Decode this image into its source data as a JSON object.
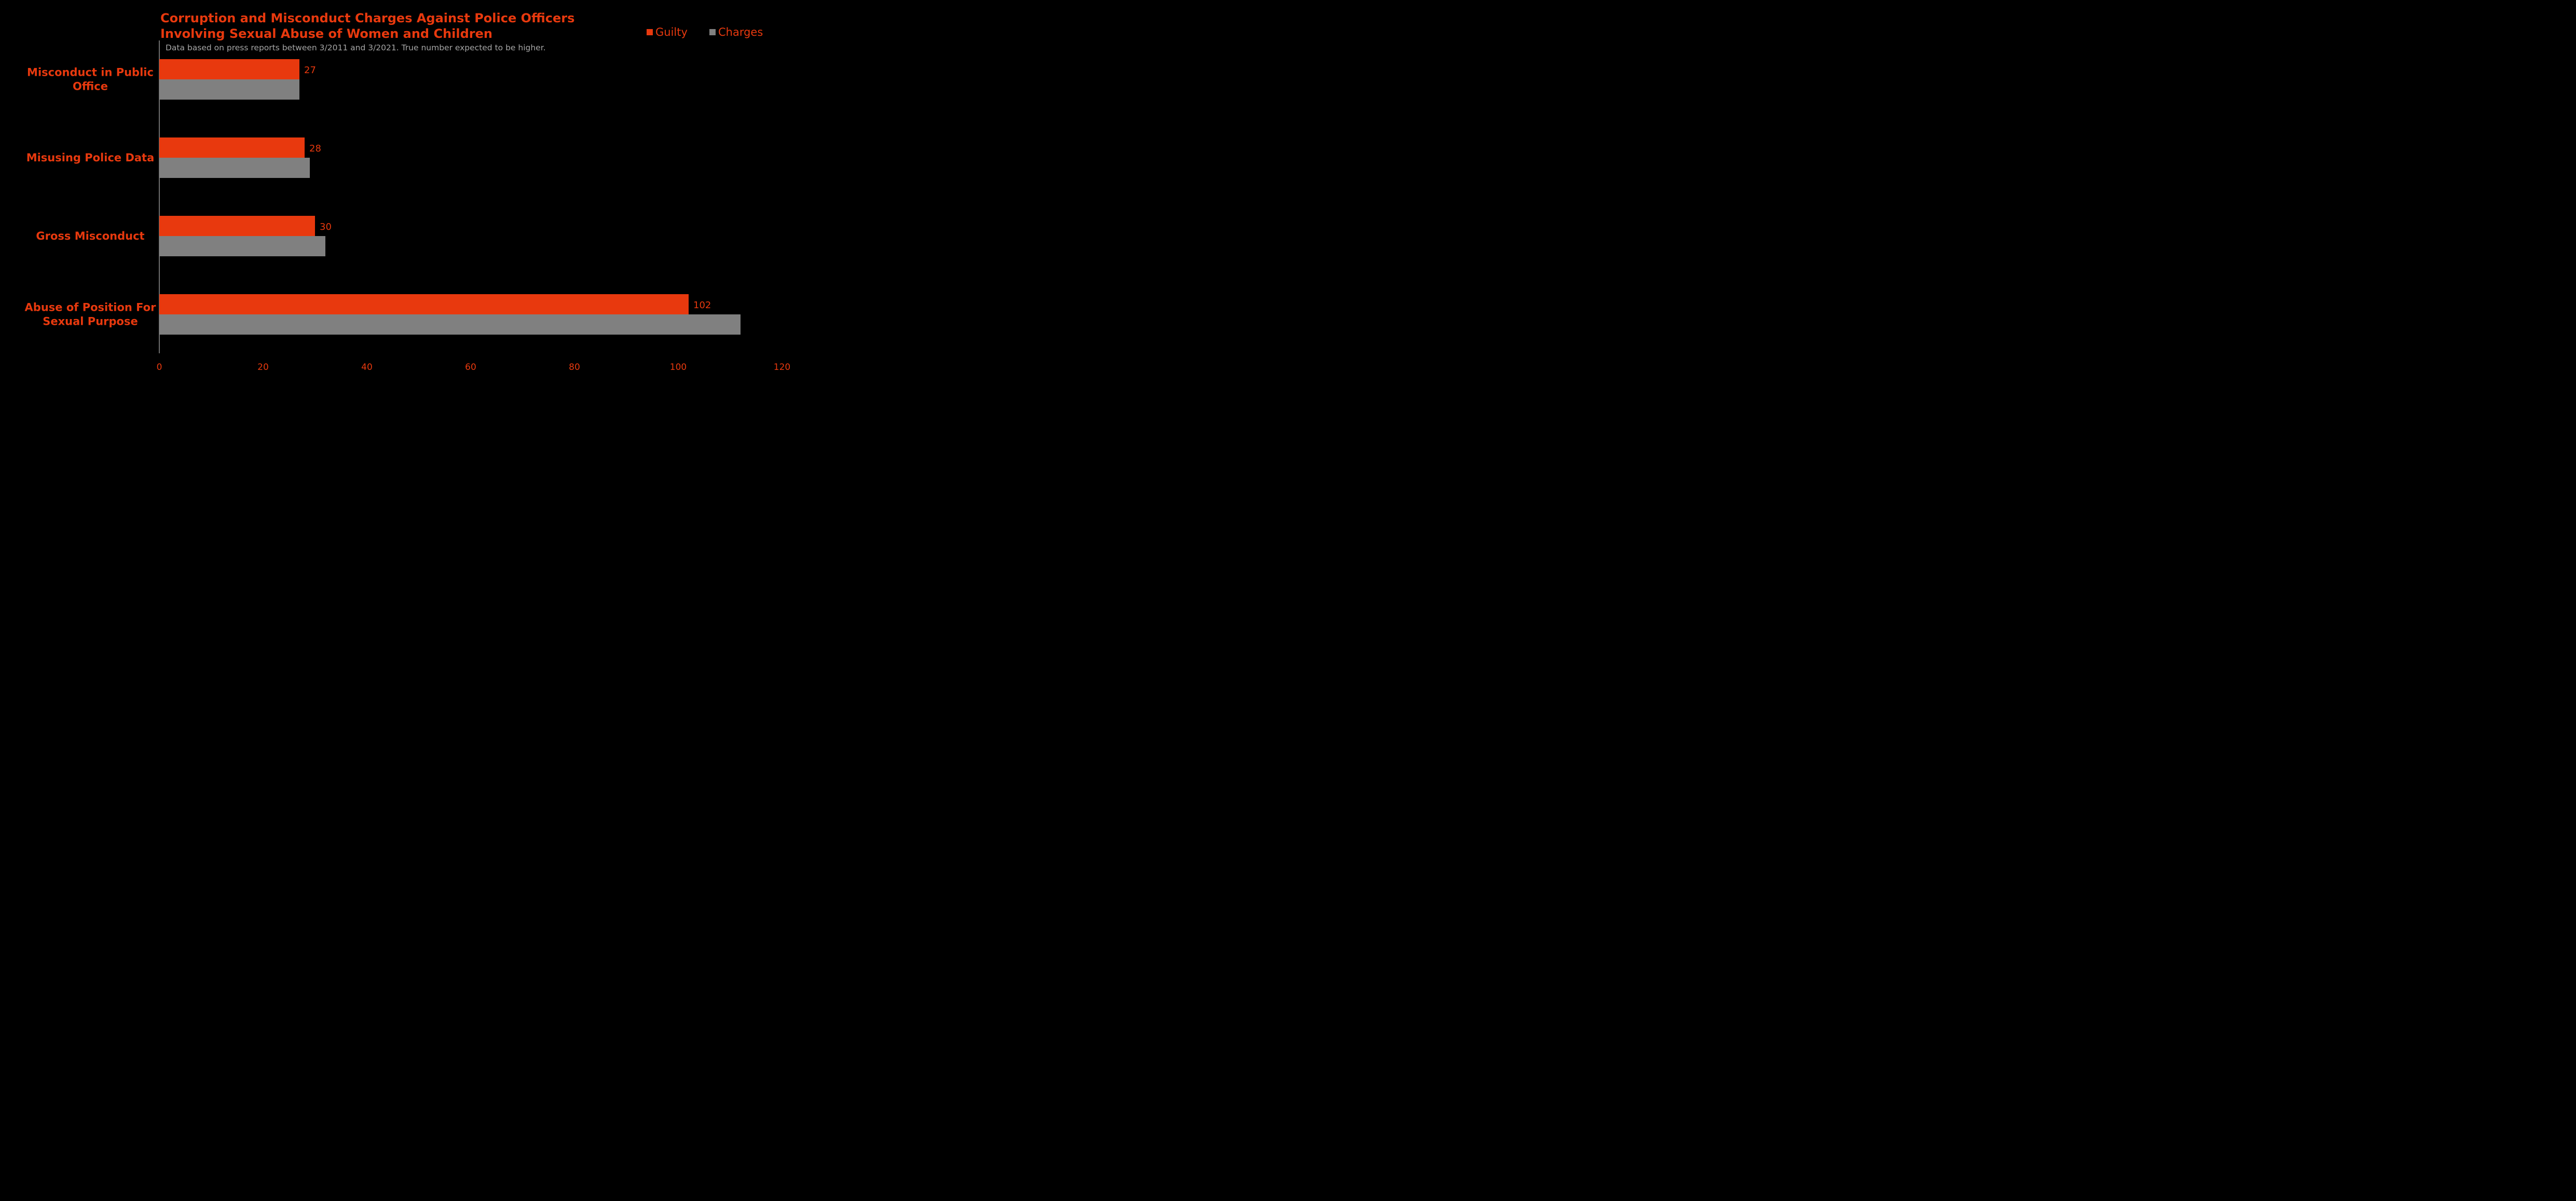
{
  "colors": {
    "background": "#000000",
    "accent": "#E8390E",
    "charges": "#808080",
    "subtitle": "#A6A6A6",
    "axis_line": "#D9D9D9"
  },
  "chart_data": {
    "type": "bar",
    "orientation": "horizontal",
    "title": [
      "Corruption and Misconduct Charges Against Police Officers",
      "Involving Sexual Abuse of Women and Children"
    ],
    "subtitle": "Data based on press reports between 3/2011 and 3/2021. True number expected to be higher.",
    "categories": [
      [
        "Misconduct in Public",
        "Office"
      ],
      [
        "Misusing Police Data"
      ],
      [
        "Gross Misconduct"
      ],
      [
        "Abuse of Position For",
        "Sexual Purpose"
      ]
    ],
    "series": [
      {
        "name": "Guilty",
        "values": [
          27,
          28,
          30,
          102
        ],
        "color": "#E8390E",
        "labels": [
          "27",
          "28",
          "30",
          "102"
        ]
      },
      {
        "name": "Charges",
        "values": [
          27,
          29,
          32,
          112
        ],
        "color": "#808080"
      }
    ],
    "x_ticks": [
      "0",
      "20",
      "40",
      "60",
      "80",
      "100",
      "120"
    ],
    "xlim": [
      0,
      120
    ],
    "grid": false,
    "legend_position": "top-right"
  }
}
